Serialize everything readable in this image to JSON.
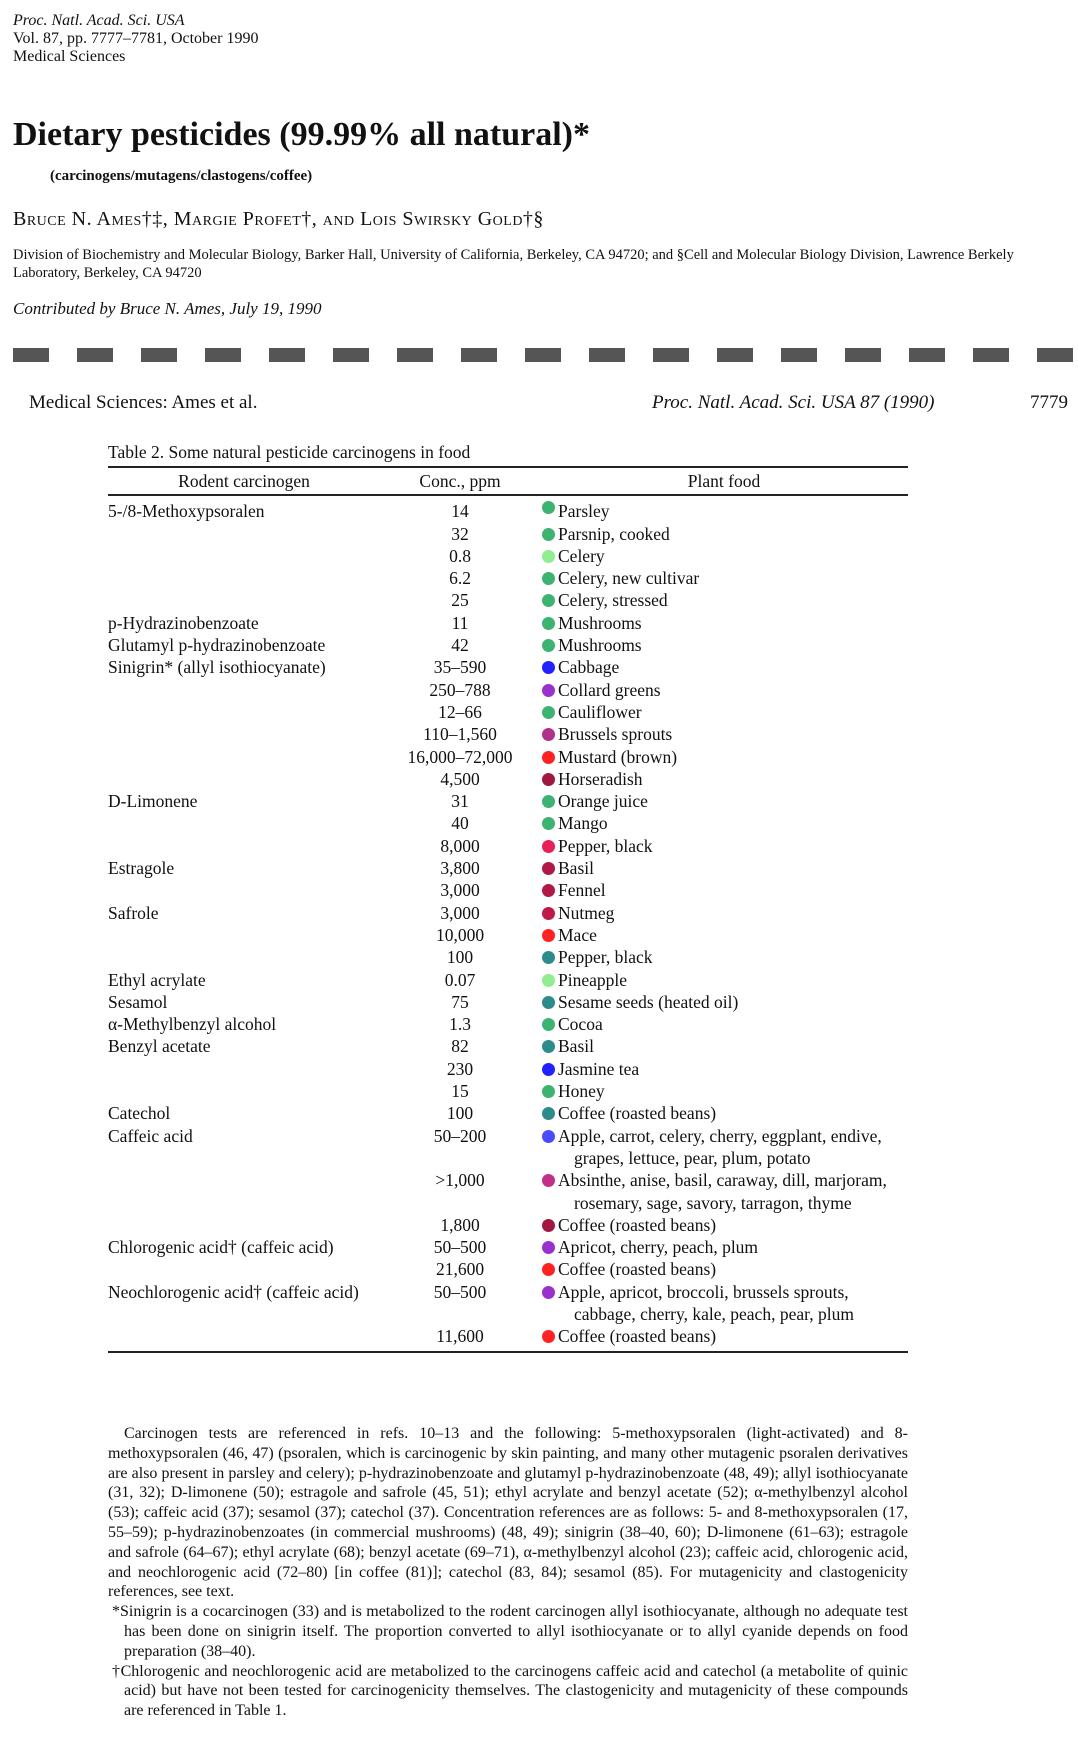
{
  "header": {
    "journal": "Proc. Natl. Acad. Sci. USA",
    "volume": "Vol. 87, pp. 7777–7781, October 1990",
    "section": "Medical Sciences"
  },
  "title": "Dietary pesticides (99.99% all natural)*",
  "subtitle": "(carcinogens/mutagens/clastogens/coffee)",
  "authors": "Bruce N. Ames†‡, Margie Profet†, and Lois Swirsky Gold†§",
  "affiliation": "Division of Biochemistry and Molecular Biology, Barker Hall, University of California, Berkeley, CA 94720; and §Cell and Molecular Biology Division, Lawrence Berkely Laboratory, Berkeley, CA 94720",
  "contributed": "Contributed by Bruce N. Ames, July 19, 1990",
  "running_header": {
    "left": "Medical Sciences: Ames et al.",
    "center": "Proc. Natl. Acad. Sci. USA 87 (1990)",
    "page": "7779"
  },
  "table": {
    "caption": "Table 2.   Some natural pesticide carcinogens in food",
    "columns": [
      "Rodent carcinogen",
      "Conc., ppm",
      "Plant food"
    ],
    "rows": [
      [
        "5-/8-Methoxypsoralen",
        "14",
        "Parsley"
      ],
      [
        null,
        "32",
        "Parsnip, cooked"
      ],
      [
        null,
        "0.8",
        "Celery"
      ],
      [
        null,
        "6.2",
        "Celery, new cultivar"
      ],
      [
        null,
        "25",
        "Celery, stressed"
      ],
      [
        "p-Hydrazinobenzoate",
        "11",
        "Mushrooms"
      ],
      [
        "Glutamyl p-hydrazinobenzoate",
        "42",
        "Mushrooms"
      ],
      [
        "Sinigrin* (allyl isothiocyanate)",
        "35–590",
        "Cabbage"
      ],
      [
        null,
        "250–788",
        "Collard greens"
      ],
      [
        null,
        "12–66",
        "Cauliflower"
      ],
      [
        null,
        "110–1,560",
        "Brussels sprouts"
      ],
      [
        null,
        "16,000–72,000",
        "Mustard (brown)"
      ],
      [
        null,
        "4,500",
        "Horseradish"
      ],
      [
        "D-Limonene",
        "31",
        "Orange juice"
      ],
      [
        null,
        "40",
        "Mango"
      ],
      [
        null,
        "8,000",
        "Pepper, black"
      ],
      [
        "Estragole",
        "3,800",
        "Basil"
      ],
      [
        null,
        "3,000",
        "Fennel"
      ],
      [
        "Safrole",
        "3,000",
        "Nutmeg"
      ],
      [
        null,
        "10,000",
        "Mace"
      ],
      [
        null,
        "100",
        "Pepper, black"
      ],
      [
        "Ethyl acrylate",
        "0.07",
        "Pineapple"
      ],
      [
        "Sesamol",
        "75",
        "Sesame seeds (heated oil)"
      ],
      [
        "α-Methylbenzyl alcohol",
        "1.3",
        "Cocoa"
      ],
      [
        "Benzyl acetate",
        "82",
        "Basil"
      ],
      [
        null,
        "230",
        "Jasmine tea"
      ],
      [
        null,
        "15",
        "Honey"
      ],
      [
        "Catechol",
        "100",
        "Coffee (roasted beans)"
      ],
      [
        "Caffeic acid",
        "50–200",
        "Apple, carrot, celery, cherry, eggplant, endive, grapes, lettuce, pear, plum, potato"
      ],
      [
        null,
        ">1,000",
        "Absinthe, anise, basil, caraway, dill, marjoram, rosemary, sage, savory, tarragon, thyme"
      ],
      [
        null,
        "1,800",
        "Coffee (roasted beans)"
      ],
      [
        "Chlorogenic acid† (caffeic acid)",
        "50–500",
        "Apricot, cherry, peach, plum"
      ],
      [
        null,
        "21,600",
        "Coffee (roasted beans)"
      ],
      [
        "Neochlorogenic acid† (caffeic acid)",
        "50–500",
        "Apple, apricot, broccoli, brussels sprouts, cabbage, cherry, kale, peach, pear, plum"
      ],
      [
        null,
        "11,600",
        "Coffee (roasted beans)"
      ]
    ],
    "dot_colors": [
      "#3cb371",
      "#3cb371",
      "#90ee90",
      "#3cb371",
      "#3cb371",
      "#3cb371",
      "#3cb371",
      "#2222ff",
      "#9932cc",
      "#3cb371",
      "#b0308a",
      "#ff2222",
      "#a01840",
      "#3cb371",
      "#3cb371",
      "#e8205a",
      "#b01848",
      "#b01848",
      "#c0184a",
      "#ff2222",
      "#2e8b8b",
      "#90ee90",
      "#2e8b8b",
      "#3cb371",
      "#2e8b8b",
      "#2222ff",
      "#3cb371",
      "#2e8b8b",
      "#4a4aff",
      "#c0308a",
      "#a01840",
      "#9932cc",
      "#ff2222",
      "#9932cc",
      "#ff2222"
    ]
  },
  "footnotes": [
    "Carcinogen tests are referenced in refs. 10–13 and the following: 5-methoxypsoralen (light-activated) and 8-methoxypsoralen (46, 47) (psoralen, which is carcinogenic by skin painting, and many other mutagenic psoralen derivatives are also present in parsley and celery); p-hydrazinobenzoate and glutamyl p-hydrazinobenzoate (48, 49); allyl isothiocyanate (31, 32); D-limonene (50); estragole and safrole (45, 51); ethyl acrylate and benzyl acetate (52); α-methylbenzyl alcohol (53); caffeic acid (37); sesamol (37); catechol (37). Concentration references are as follows: 5- and 8-methoxypsoralen (17, 55–59); p-hydrazinobenzoates (in commercial mushrooms) (48, 49); sinigrin (38–40, 60); D-limonene (61–63); estragole and safrole (64–67); ethyl acrylate (68); benzyl acetate (69–71), α-methylbenzyl alcohol (23); caffeic acid, chlorogenic acid, and neochlorogenic acid (72–80) [in coffee (81)]; catechol (83, 84); sesamol (85). For mutagenicity and clastogenicity references, see text.",
    "*Sinigrin is a cocarcinogen (33) and is metabolized to the rodent carcinogen allyl isothiocyanate, although no adequate test has been done on sinigrin itself. The proportion converted to allyl isothiocyanate or to allyl cyanide depends on food preparation (38–40).",
    "†Chlorogenic and neochlorogenic acid are metabolized to the carcinogens caffeic acid and catechol (a metabolite of quinic acid) but have not been tested for carcinogenicity themselves. The clastogenicity and mutagenicity of these compounds are referenced in Table 1."
  ]
}
